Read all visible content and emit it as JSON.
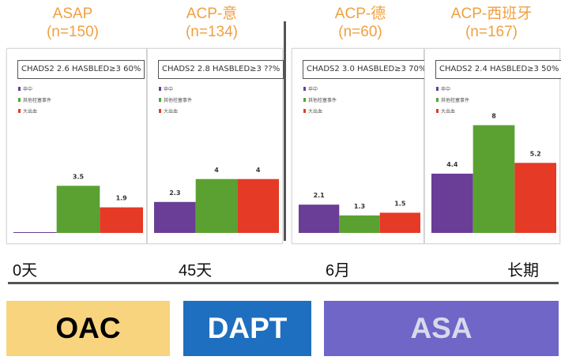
{
  "studies": [
    {
      "name": "ASAP",
      "n": "(n=150)",
      "score_text": "CHADS2 2.6    HASBLED≥3 60%"
    },
    {
      "name": "ACP-意",
      "n": "(n=134)",
      "score_text": "CHADS2 2.8    HASBLED≥3 ??%"
    },
    {
      "name": "ACP-德",
      "n": "(n=60)",
      "score_text": "CHADS2 3.0    HASBLED≥3 70%"
    },
    {
      "name": "ACP-西班牙",
      "n": "(n=167)",
      "score_text": "CHADS2 2.4    HASBLED≥3 50%"
    }
  ],
  "timeline": [
    "0天",
    "45天",
    "6月",
    "长期"
  ],
  "therapies": [
    {
      "label": "OAC",
      "bg": "#f9d47e",
      "fg": "#000000"
    },
    {
      "label": "DAPT",
      "bg": "#1f6fc0",
      "fg": "#ffffff"
    },
    {
      "label": "ASA",
      "bg": "#6f66c8",
      "fg": "#d9d9ec"
    }
  ],
  "colors": {
    "title": "#f0a040",
    "stroke": "#6a3d96",
    "other": "#5aa132",
    "bleed": "#e53a26"
  },
  "chart_data": [
    {
      "type": "bar",
      "title": "ASAP (n=150)",
      "categories": [
        "卒中",
        "其他栓塞事件",
        "大出血"
      ],
      "values": [
        0,
        3.5,
        1.9
      ],
      "value_labels": [
        "",
        "3.5",
        "1.9"
      ],
      "ylim": [
        0,
        8.5
      ],
      "legend": [
        "卒中",
        "其他栓塞事件",
        "大出血"
      ],
      "legend_position": "top-left"
    },
    {
      "type": "bar",
      "title": "ACP-意 (n=134)",
      "categories": [
        "卒中",
        "其他栓塞事件",
        "大出血"
      ],
      "values": [
        2.3,
        4,
        4
      ],
      "value_labels": [
        "2.3",
        "4",
        "4"
      ],
      "ylim": [
        0,
        8.5
      ],
      "legend": [
        "卒中",
        "其他栓塞事件",
        "大出血"
      ],
      "legend_position": "top-left"
    },
    {
      "type": "bar",
      "title": "ACP-德 (n=60)",
      "categories": [
        "卒中",
        "其他栓塞事件",
        "大出血"
      ],
      "values": [
        2.1,
        1.3,
        1.5
      ],
      "value_labels": [
        "2.1",
        "1.3",
        "1.5"
      ],
      "ylim": [
        0,
        8.5
      ],
      "legend": [
        "卒中",
        "其他栓塞事件",
        "大出血"
      ],
      "legend_position": "top-left"
    },
    {
      "type": "bar",
      "title": "ACP-西班牙 (n=167)",
      "categories": [
        "卒中",
        "其他栓塞事件",
        "大出血"
      ],
      "values": [
        4.4,
        8,
        5.2
      ],
      "value_labels": [
        "4.4",
        "8",
        "5.2"
      ],
      "ylim": [
        0,
        8.5
      ],
      "legend": [
        "卒中",
        "其他栓塞事件",
        "大出血"
      ],
      "legend_position": "top-left"
    }
  ]
}
